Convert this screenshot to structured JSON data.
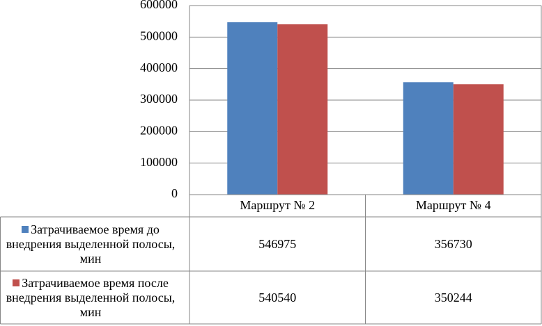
{
  "chart_data": {
    "type": "bar",
    "categories": [
      "Маршрут № 2",
      "Маршрут № 4"
    ],
    "series": [
      {
        "name": "Затрачиваемое время до внедрения выделенной полосы, мин",
        "color": "#4f81bd",
        "values": [
          546975,
          356730
        ]
      },
      {
        "name": "Затрачиваемое время после внедрения выделенной полосы, мин",
        "color": "#c0504d",
        "values": [
          540540,
          350244
        ]
      }
    ],
    "ylim": [
      0,
      600000
    ],
    "yticks": [
      0,
      100000,
      200000,
      300000,
      400000,
      500000,
      600000
    ],
    "grid": true,
    "legend": "data-table"
  }
}
